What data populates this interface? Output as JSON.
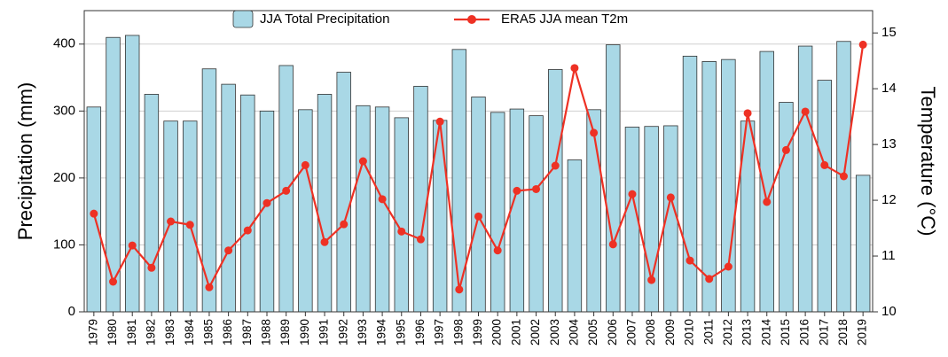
{
  "chart_data": {
    "type": "bar",
    "categories": [
      "1979",
      "1980",
      "1981",
      "1982",
      "1983",
      "1984",
      "1985",
      "1986",
      "1987",
      "1988",
      "1989",
      "1990",
      "1991",
      "1992",
      "1993",
      "1994",
      "1995",
      "1996",
      "1997",
      "1998",
      "1999",
      "2000",
      "2001",
      "2002",
      "2003",
      "2004",
      "2005",
      "2006",
      "2007",
      "2008",
      "2009",
      "2010",
      "2011",
      "2012",
      "2013",
      "2014",
      "2015",
      "2016",
      "2017",
      "2018",
      "2019"
    ],
    "series": [
      {
        "name": "JJA Total Precipitation",
        "type": "bar",
        "color": "#a9d8e6",
        "values": [
          306,
          410,
          413,
          325,
          285,
          285,
          363,
          340,
          324,
          300,
          368,
          302,
          325,
          358,
          308,
          306,
          290,
          337,
          286,
          392,
          321,
          298,
          303,
          293,
          362,
          227,
          302,
          399,
          276,
          277,
          278,
          382,
          374,
          377,
          285,
          389,
          313,
          397,
          346,
          404,
          204
        ]
      },
      {
        "name": "ERA5 JJA mean T2m",
        "type": "line",
        "color": "#ee3124",
        "axis": "y2",
        "values": [
          11.76,
          10.54,
          11.19,
          10.79,
          11.62,
          11.56,
          10.44,
          11.1,
          11.46,
          11.95,
          12.17,
          12.63,
          11.25,
          11.57,
          12.7,
          12.02,
          11.44,
          11.3,
          13.41,
          10.4,
          11.71,
          11.1,
          12.17,
          12.2,
          12.62,
          14.37,
          13.21,
          11.21,
          12.11,
          10.57,
          12.05,
          10.92,
          10.59,
          10.81,
          13.56,
          11.97,
          12.9,
          13.59,
          12.63,
          12.43,
          14.79
        ]
      }
    ],
    "y_label": "Precipitation (mm)",
    "y2_label": "Temperature (°C)",
    "ylim": [
      0,
      450
    ],
    "yticks": [
      0,
      100,
      200,
      300,
      400
    ],
    "y2lim": [
      10,
      15.4
    ],
    "y2ticks": [
      10,
      11,
      12,
      13,
      14,
      15
    ],
    "grid": true,
    "legend": "top"
  }
}
